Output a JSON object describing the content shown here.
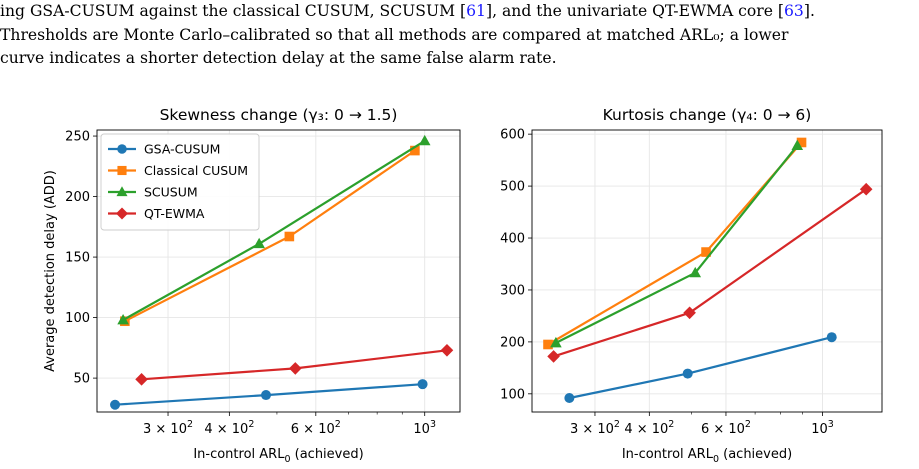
{
  "text": {
    "line1": {
      "pre": "ing GSA-CUSUM against the classical CUSUM, SCUSUM [",
      "ref1": "61",
      "mid": "], and the univariate QT-EWMA core [",
      "ref2": "63",
      "post": "]."
    },
    "line2": "Thresholds are Monte Carlo–calibrated so that all methods are compared at matched ARL₀; a lower",
    "line3": "curve indicates a shorter detection delay at the same false alarm rate."
  },
  "colors": {
    "GSA-CUSUM": "#1f77b4",
    "Classical CUSUM": "#ff7f0e",
    "SCUSUM": "#2ca02c",
    "QT-EWMA": "#d62728"
  },
  "chart_data": [
    {
      "type": "line",
      "title": "Skewness change (γ₃: 0 → 1.5)",
      "xlabel": "In-control ARL₀ (achieved)",
      "ylabel": "Average detection delay (ADD)",
      "xscale": "log",
      "xlim": [
        215,
        1180
      ],
      "ylim": [
        22,
        255
      ],
      "xticks": [
        {
          "v": 300,
          "label": "3 × 10²"
        },
        {
          "v": 400,
          "label": "4 × 10²"
        },
        {
          "v": 600,
          "label": "6 × 10²"
        },
        {
          "v": 1000,
          "label": "10³"
        }
      ],
      "yticks": [
        50,
        100,
        150,
        200,
        250
      ],
      "legend": "top-left",
      "grid": true,
      "series": [
        {
          "name": "GSA-CUSUM",
          "marker": "circle",
          "x": [
            234,
            475,
            990
          ],
          "y": [
            28,
            36,
            45
          ]
        },
        {
          "name": "Classical CUSUM",
          "marker": "square",
          "x": [
            245,
            530,
            955
          ],
          "y": [
            97,
            167,
            238
          ]
        },
        {
          "name": "SCUSUM",
          "marker": "triangle",
          "x": [
            243,
            460,
            1000
          ],
          "y": [
            98,
            161,
            246
          ]
        },
        {
          "name": "QT-EWMA",
          "marker": "diamond",
          "x": [
            265,
            545,
            1110
          ],
          "y": [
            49,
            58,
            73
          ]
        }
      ]
    },
    {
      "type": "line",
      "title": "Kurtosis change (γ₄: 0 → 6)",
      "xlabel": "In-control ARL₀ (achieved)",
      "ylabel": "",
      "xscale": "log",
      "xlim": [
        215,
        1370
      ],
      "ylim": [
        65,
        608
      ],
      "xticks": [
        {
          "v": 300,
          "label": "3 × 10²"
        },
        {
          "v": 400,
          "label": "4 × 10²"
        },
        {
          "v": 600,
          "label": "6 × 10²"
        },
        {
          "v": 1000,
          "label": "10³"
        }
      ],
      "yticks": [
        100,
        200,
        300,
        400,
        500,
        600
      ],
      "grid": true,
      "series": [
        {
          "name": "GSA-CUSUM",
          "marker": "circle",
          "x": [
            262,
            490,
            1050
          ],
          "y": [
            92,
            139,
            209
          ]
        },
        {
          "name": "Classical CUSUM",
          "marker": "square",
          "x": [
            234,
            540,
            895
          ],
          "y": [
            195,
            373,
            584
          ]
        },
        {
          "name": "SCUSUM",
          "marker": "triangle",
          "x": [
            244,
            510,
            875
          ],
          "y": [
            198,
            333,
            578
          ]
        },
        {
          "name": "QT-EWMA",
          "marker": "diamond",
          "x": [
            241,
            495,
            1260
          ],
          "y": [
            172,
            256,
            494
          ]
        }
      ]
    }
  ]
}
